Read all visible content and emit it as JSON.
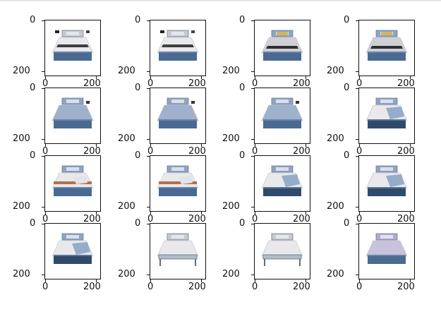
{
  "grid": {
    "rows": 4,
    "cols": 4
  },
  "tick_labels": {
    "y_top": "0",
    "y_bottom": "200",
    "x_left": "0",
    "x_right": "200"
  },
  "colors": {
    "frame": "#111111",
    "headboard_blue": "#8fa4c4",
    "headboard_gray": "#c9c9c9",
    "duvet_white": "#e9e9ec",
    "duvet_gray": "#cfcfd4",
    "base_blue": "#4a6a91",
    "base_navy": "#2f4a6b",
    "throw_blue": "#8ca5c8",
    "throw_rust": "#b5704a",
    "lavender": "#b4a8cc"
  },
  "beds": [
    {
      "variant": "gray-wide",
      "throw": "none",
      "base": "base_blue"
    },
    {
      "variant": "gray-wide",
      "throw": "none",
      "base": "base_blue"
    },
    {
      "variant": "blue-dark",
      "throw": "none",
      "base": "base_blue"
    },
    {
      "variant": "blue-dark",
      "throw": "none",
      "base": "base_blue"
    },
    {
      "variant": "blue-duvet",
      "throw": "none",
      "base": "base_blue"
    },
    {
      "variant": "blue-duvet",
      "throw": "none",
      "base": "base_blue"
    },
    {
      "variant": "blue-duvet",
      "throw": "none",
      "base": "base_blue"
    },
    {
      "variant": "white-throw",
      "throw": "throw_blue",
      "base": "base_navy"
    },
    {
      "variant": "white-rust",
      "throw": "throw_rust",
      "base": "base_blue"
    },
    {
      "variant": "white-rust",
      "throw": "throw_rust",
      "base": "base_blue"
    },
    {
      "variant": "white-throw",
      "throw": "throw_blue",
      "base": "base_navy"
    },
    {
      "variant": "white-throw",
      "throw": "throw_blue",
      "base": "base_navy"
    },
    {
      "variant": "white-throw",
      "throw": "throw_blue",
      "base": "base_navy"
    },
    {
      "variant": "frame-gray",
      "throw": "none",
      "base": "base_blue"
    },
    {
      "variant": "frame-gray",
      "throw": "none",
      "base": "base_blue"
    },
    {
      "variant": "lavender",
      "throw": "none",
      "base": "base_blue"
    }
  ]
}
